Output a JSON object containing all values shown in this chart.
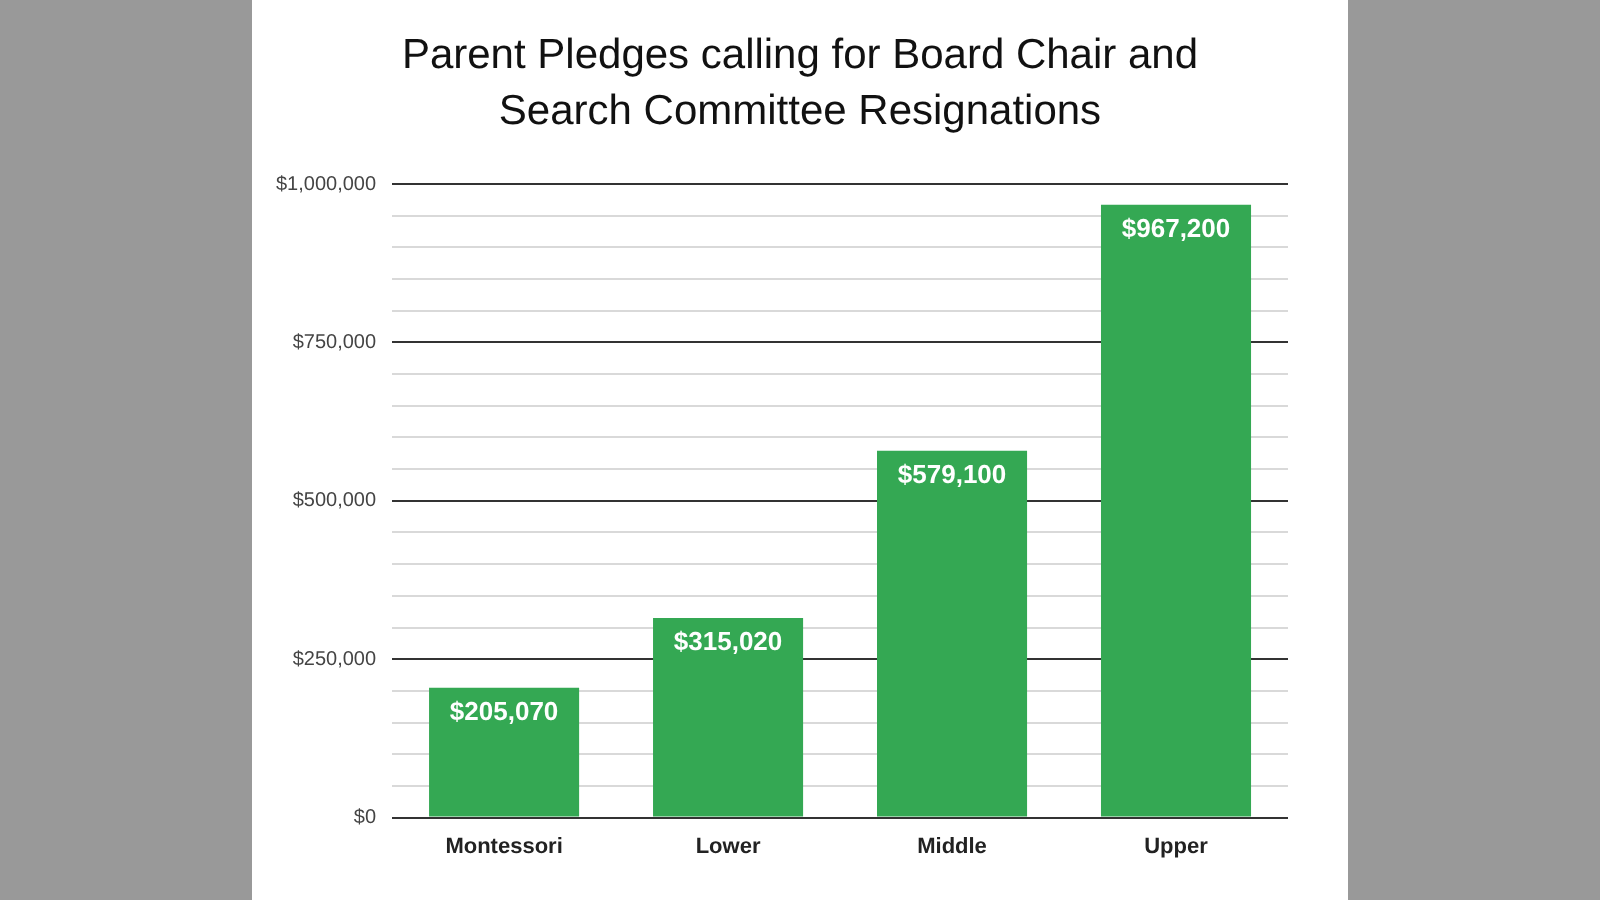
{
  "chart_data": {
    "type": "bar",
    "title": "Parent Pledges calling for Board Chair and Search Committee Resignations",
    "categories": [
      "Montessori",
      "Lower",
      "Middle",
      "Upper"
    ],
    "values": [
      205070,
      315020,
      579100,
      967200
    ],
    "color": "#34a853",
    "value_labels": [
      "$205,070",
      "$315,020",
      "$579,100",
      "$967,200"
    ],
    "ylim": [
      0,
      1000000
    ],
    "yticks": [
      {
        "value": 0,
        "label": "$0"
      },
      {
        "value": 50000,
        "label": null
      },
      {
        "value": 100000,
        "label": null
      },
      {
        "value": 150000,
        "label": null
      },
      {
        "value": 200000,
        "label": null
      },
      {
        "value": 250000,
        "label": "$250,000"
      },
      {
        "value": 300000,
        "label": null
      },
      {
        "value": 350000,
        "label": null
      },
      {
        "value": 400000,
        "label": null
      },
      {
        "value": 450000,
        "label": null
      },
      {
        "value": 500000,
        "label": "$500,000"
      },
      {
        "value": 550000,
        "label": null
      },
      {
        "value": 600000,
        "label": null
      },
      {
        "value": 650000,
        "label": null
      },
      {
        "value": 700000,
        "label": null
      },
      {
        "value": 750000,
        "label": "$750,000"
      },
      {
        "value": 800000,
        "label": null
      },
      {
        "value": 850000,
        "label": null
      },
      {
        "value": 900000,
        "label": null
      },
      {
        "value": 950000,
        "label": null
      },
      {
        "value": 1000000,
        "label": "$1,000,000"
      }
    ],
    "grid": "y",
    "legend": false
  }
}
